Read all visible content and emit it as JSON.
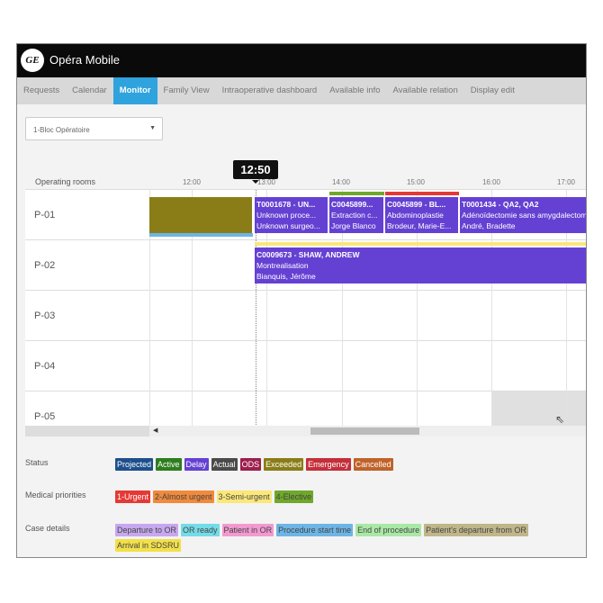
{
  "app": {
    "logo": "GE",
    "title": "Opéra Mobile"
  },
  "nav": {
    "tabs": [
      "Requests",
      "Calendar",
      "Monitor",
      "Family View",
      "Intraoperative dashboard",
      "Available info",
      "Available relation",
      "Display edit"
    ],
    "active": "Monitor"
  },
  "selector": {
    "value": "1-Bloc Opératoire"
  },
  "timeline": {
    "current_time": "12:50",
    "rooms_header": "Operating rooms",
    "ticks": [
      "12:00",
      "13:00",
      "14:00",
      "15:00",
      "16:00",
      "17:00"
    ]
  },
  "rooms": [
    "P-01",
    "P-02",
    "P-03",
    "P-04",
    "P-05"
  ],
  "cases": [
    {
      "id": "T0001678 - UN...",
      "procedure": "Unknown proce...",
      "surgeon": "Unknown surgeo..."
    },
    {
      "id": "C0045899...",
      "procedure": "Extraction c...",
      "surgeon": "Jorge Blanco"
    },
    {
      "id": "C0045899 - BL...",
      "procedure": "Abdominoplastie",
      "surgeon": "Brodeur, Marie-E..."
    },
    {
      "id": "T0001434 - QA2, QA2",
      "procedure": "Adénoïdectomie sans amygdalectomie",
      "surgeon": "André, Bradette"
    },
    {
      "id": "C0009673 - SHAW, ANDREW",
      "procedure": "Montrealisation",
      "surgeon": "Bianquis, Jérôme"
    }
  ],
  "legend": {
    "status": {
      "label": "Status",
      "items": [
        {
          "t": "Projected",
          "c": "#1d4f8c"
        },
        {
          "t": "Active",
          "c": "#2e7d1e"
        },
        {
          "t": "Delay",
          "c": "#6441d2"
        },
        {
          "t": "Actual",
          "c": "#4a4a4a"
        },
        {
          "t": "ODS",
          "c": "#9c1f4e"
        },
        {
          "t": "Exceeded",
          "c": "#8a7d18"
        },
        {
          "t": "Emergency",
          "c": "#c42f3a"
        },
        {
          "t": "Cancelled",
          "c": "#c0622a"
        }
      ]
    },
    "priorities": {
      "label": "Medical priorities",
      "items": [
        {
          "t": "1-Urgent",
          "c": "#e53935"
        },
        {
          "t": "2-Almost urgent",
          "c": "#f08a3c"
        },
        {
          "t": "3-Semi-urgent",
          "c": "#fbe77a"
        },
        {
          "t": "4-Elective",
          "c": "#6fa82a"
        }
      ]
    },
    "case_details": {
      "label": "Case details",
      "items": [
        {
          "t": "Departure to OR",
          "c": "#c6a8ef"
        },
        {
          "t": "OR ready",
          "c": "#74dbe8"
        },
        {
          "t": "Patient in OR",
          "c": "#f29ad0"
        },
        {
          "t": "Procedure start time",
          "c": "#6db5e6"
        },
        {
          "t": "End of procedure",
          "c": "#a9e8a6"
        },
        {
          "t": "Patient's departure from OR",
          "c": "#bfb68a"
        },
        {
          "t": "Arrival in SDSRU",
          "c": "#f2e04a"
        }
      ]
    }
  }
}
